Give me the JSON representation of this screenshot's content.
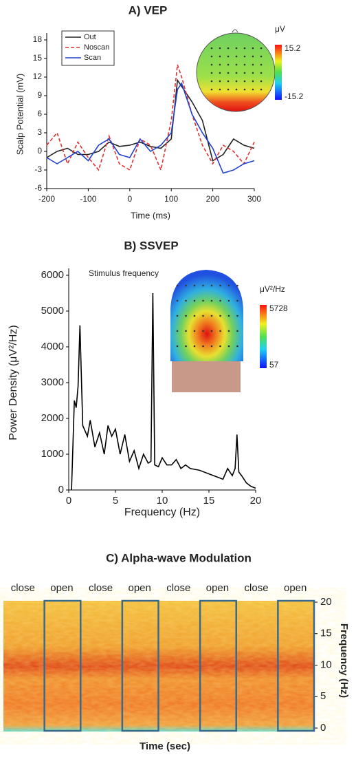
{
  "chart_data": [
    {
      "type": "line",
      "title": "A) VEP",
      "x_label": "Time (ms)",
      "y_label": "Scalp Potential (mV)",
      "x": [
        -200,
        -175,
        -150,
        -125,
        -100,
        -75,
        -50,
        -25,
        0,
        25,
        50,
        75,
        100,
        115,
        125,
        150,
        175,
        200,
        225,
        250,
        275,
        300
      ],
      "series": [
        {
          "name": "Out",
          "color": "#222222",
          "values": [
            -1,
            0,
            0.5,
            -0.5,
            -0.5,
            0,
            1.5,
            0.8,
            1,
            1.5,
            0.8,
            0.5,
            2,
            11.5,
            10.5,
            8,
            5,
            -1.5,
            -0.5,
            2,
            1,
            0.5
          ]
        },
        {
          "name": "Noscan",
          "color": "#e03030",
          "dash": true,
          "values": [
            1,
            3,
            -2,
            1.5,
            -1,
            -3,
            2.5,
            -2,
            -3,
            2,
            1,
            -3,
            5,
            14,
            12,
            6,
            1,
            -2,
            1,
            0,
            -2,
            1.5
          ]
        },
        {
          "name": "Scan",
          "color": "#2040d0",
          "values": [
            -1,
            -2,
            -1,
            0,
            -1.5,
            1,
            2,
            -0.5,
            -1,
            2,
            0,
            1,
            3,
            10,
            11,
            6,
            3,
            0.5,
            -3.5,
            -3,
            -2,
            -1.5
          ]
        }
      ],
      "xlim": [
        -200,
        300
      ],
      "xticks": [
        -200,
        -100,
        0,
        100,
        200,
        300
      ],
      "ylim": [
        -6,
        18
      ],
      "yticks": [
        -6,
        -3,
        0,
        3,
        6,
        9,
        12,
        15,
        18
      ],
      "colorbar_label": "μV",
      "clim": [
        -15.2,
        15.2
      ]
    },
    {
      "type": "line",
      "title": "B) SSVEP",
      "x_label": "Frequency (Hz)",
      "y_label": "Power Density (μV²/Hz)",
      "annotation": "Stimulus frequency",
      "x": [
        0.3,
        0.6,
        0.8,
        1.0,
        1.2,
        1.5,
        2,
        2.3,
        2.8,
        3.3,
        3.8,
        4.2,
        4.6,
        5,
        5.5,
        6,
        6.5,
        7,
        7.5,
        8,
        8.5,
        8.8,
        9,
        9.2,
        9.6,
        10,
        10.5,
        11,
        11.5,
        12,
        12.5,
        13,
        14,
        15,
        16,
        16.5,
        17,
        17.5,
        17.8,
        18,
        18.2,
        18.5,
        19,
        19.5,
        20
      ],
      "values": [
        0,
        2500,
        2300,
        2900,
        4600,
        1800,
        1500,
        1950,
        1200,
        1600,
        1000,
        1800,
        1500,
        1700,
        1000,
        1550,
        800,
        1100,
        600,
        1000,
        750,
        800,
        5500,
        700,
        650,
        900,
        700,
        700,
        850,
        600,
        700,
        600,
        550,
        450,
        350,
        300,
        600,
        400,
        600,
        1550,
        500,
        400,
        200,
        100,
        50
      ],
      "color": "#000000",
      "xlim": [
        0,
        20
      ],
      "xticks": [
        0,
        5,
        10,
        15,
        20
      ],
      "ylim": [
        0,
        6000
      ],
      "yticks": [
        0,
        1000,
        2000,
        3000,
        4000,
        5000,
        6000
      ],
      "colorbar_label": "μV²/Hz",
      "clim": [
        57,
        5728
      ]
    },
    {
      "type": "spectrogram",
      "title": "C) Alpha-wave Modulation",
      "x_label": "Time (sec)",
      "y_label": "Frequency (Hz)",
      "segments": [
        "close",
        "open",
        "close",
        "open",
        "close",
        "open",
        "close",
        "open"
      ],
      "box_color": "#3a6a8a",
      "ylim": [
        0,
        20
      ],
      "yticks": [
        0,
        5,
        10,
        15,
        20
      ]
    }
  ]
}
